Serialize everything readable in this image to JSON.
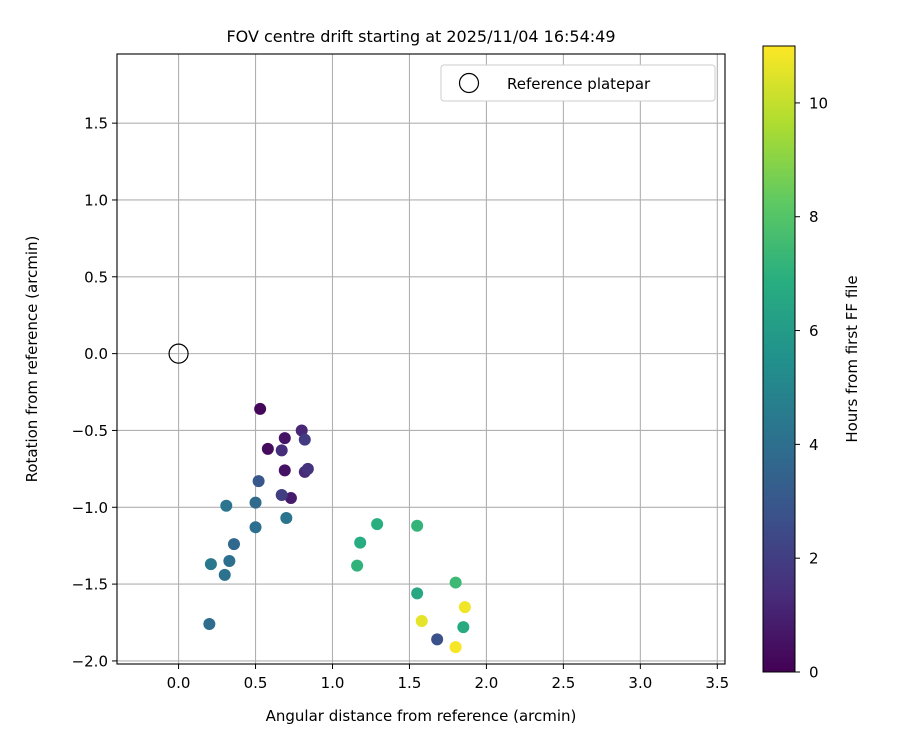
{
  "chart_data": {
    "type": "scatter",
    "title": "FOV centre drift starting at 2025/11/04 16:54:49",
    "xlabel": "Angular distance from reference (arcmin)",
    "ylabel": "Rotation from reference (arcmin)",
    "xlim": [
      -0.4,
      3.55
    ],
    "ylim": [
      -2.02,
      1.95
    ],
    "xticks": [
      0.0,
      0.5,
      1.0,
      1.5,
      2.0,
      2.5,
      3.0,
      3.5
    ],
    "xtick_labels": [
      "0.0",
      "0.5",
      "1.0",
      "1.5",
      "2.0",
      "2.5",
      "3.0",
      "3.5"
    ],
    "yticks": [
      -2.0,
      -1.5,
      -1.0,
      -0.5,
      0.0,
      0.5,
      1.0,
      1.5
    ],
    "ytick_labels": [
      "−2.0",
      "−1.5",
      "−1.0",
      "−0.5",
      "0.0",
      "0.5",
      "1.0",
      "1.5"
    ],
    "grid": true,
    "legend": {
      "placement": "upper-right",
      "entries": [
        "Reference platepar"
      ]
    },
    "reference_point": {
      "x": 0.0,
      "y": 0.0,
      "label": "Reference platepar"
    },
    "colorbar": {
      "label": "Hours from first FF file",
      "colormap": "viridis",
      "range": [
        0,
        11
      ],
      "ticks": [
        0,
        2,
        4,
        6,
        8,
        10
      ],
      "tick_labels": [
        "0",
        "2",
        "4",
        "6",
        "8",
        "10"
      ]
    },
    "points": [
      {
        "x": 0.53,
        "y": -0.36,
        "c": 0.2
      },
      {
        "x": 0.58,
        "y": -0.62,
        "c": 0.3
      },
      {
        "x": 0.69,
        "y": -0.55,
        "c": 0.6
      },
      {
        "x": 0.69,
        "y": -0.76,
        "c": 0.5
      },
      {
        "x": 0.73,
        "y": -0.94,
        "c": 0.8
      },
      {
        "x": 0.67,
        "y": -0.63,
        "c": 1.4
      },
      {
        "x": 0.8,
        "y": -0.5,
        "c": 1.2
      },
      {
        "x": 0.82,
        "y": -0.56,
        "c": 1.9
      },
      {
        "x": 0.82,
        "y": -0.77,
        "c": 1.3
      },
      {
        "x": 0.84,
        "y": -0.75,
        "c": 1.6
      },
      {
        "x": 0.67,
        "y": -0.92,
        "c": 2.0
      },
      {
        "x": 0.52,
        "y": -0.83,
        "c": 3.0
      },
      {
        "x": 0.5,
        "y": -0.97,
        "c": 3.8
      },
      {
        "x": 0.31,
        "y": -0.99,
        "c": 4.3
      },
      {
        "x": 0.5,
        "y": -1.13,
        "c": 4.0
      },
      {
        "x": 0.7,
        "y": -1.07,
        "c": 4.2
      },
      {
        "x": 0.36,
        "y": -1.24,
        "c": 3.7
      },
      {
        "x": 0.33,
        "y": -1.35,
        "c": 4.0
      },
      {
        "x": 0.21,
        "y": -1.37,
        "c": 4.4
      },
      {
        "x": 0.3,
        "y": -1.44,
        "c": 4.1
      },
      {
        "x": 0.2,
        "y": -1.76,
        "c": 3.9
      },
      {
        "x": 1.29,
        "y": -1.11,
        "c": 6.9
      },
      {
        "x": 1.55,
        "y": -1.12,
        "c": 7.2
      },
      {
        "x": 1.18,
        "y": -1.23,
        "c": 6.8
      },
      {
        "x": 1.16,
        "y": -1.38,
        "c": 7.1
      },
      {
        "x": 1.8,
        "y": -1.49,
        "c": 7.4
      },
      {
        "x": 1.55,
        "y": -1.56,
        "c": 6.6
      },
      {
        "x": 1.86,
        "y": -1.65,
        "c": 10.8
      },
      {
        "x": 1.58,
        "y": -1.74,
        "c": 10.6
      },
      {
        "x": 1.85,
        "y": -1.78,
        "c": 6.7
      },
      {
        "x": 1.68,
        "y": -1.86,
        "c": 2.7
      },
      {
        "x": 1.8,
        "y": -1.91,
        "c": 10.9
      }
    ]
  }
}
